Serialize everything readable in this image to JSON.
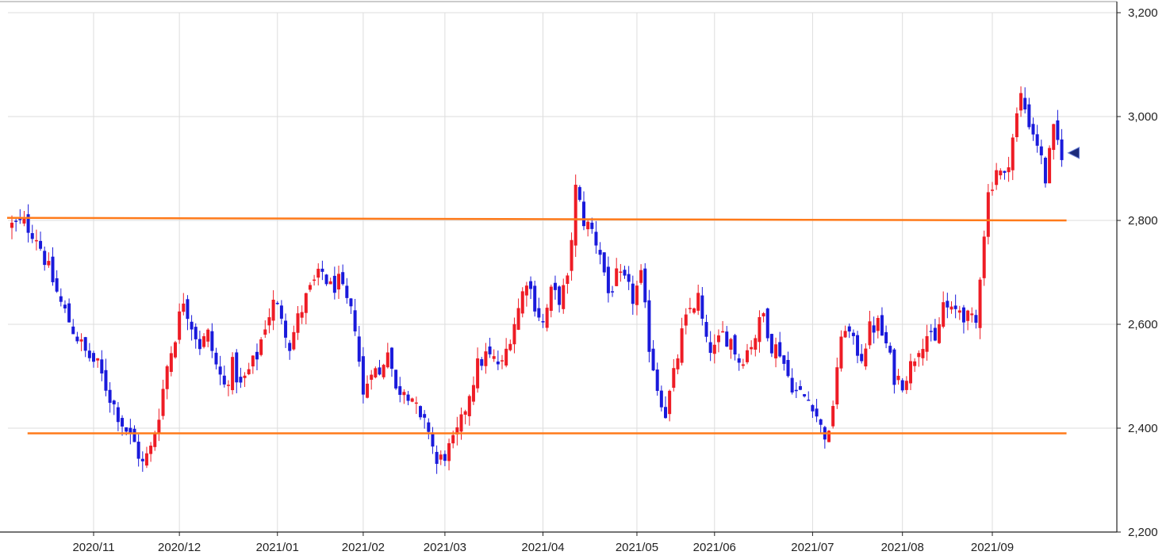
{
  "colors": {
    "up": "#ee1c25",
    "down": "#1a1adb",
    "grid": "#dddddd",
    "axis": "#222222",
    "support_resistance": "#ff7a1a",
    "marker": "#1b2a7a"
  },
  "chart_data": {
    "type": "candlestick",
    "title": "",
    "xlabel": "",
    "ylabel": "",
    "ylim": [
      2200,
      3200
    ],
    "y_ticks": [
      2200,
      2400,
      2600,
      2800,
      3000,
      3200
    ],
    "y_tick_labels": [
      "2,200",
      "2,400",
      "2,600",
      "2,800",
      "3,000",
      "3,200"
    ],
    "x_ticks": [
      {
        "label": "2020/11",
        "bar": 20
      },
      {
        "label": "2020/12",
        "bar": 41
      },
      {
        "label": "2021/01",
        "bar": 65
      },
      {
        "label": "2021/02",
        "bar": 86
      },
      {
        "label": "2021/03",
        "bar": 106
      },
      {
        "label": "2021/04",
        "bar": 130
      },
      {
        "label": "2021/05",
        "bar": 153
      },
      {
        "label": "2021/06",
        "bar": 172
      },
      {
        "label": "2021/07",
        "bar": 196
      },
      {
        "label": "2021/08",
        "bar": 218
      },
      {
        "label": "2021/09",
        "bar": 240
      }
    ],
    "bar_count": 258,
    "horizontal_lines": [
      {
        "from_bar": 0,
        "to_bar": 257,
        "y_start": 2805,
        "y_end": 2800
      },
      {
        "from_bar": 5,
        "to_bar": 257,
        "y_start": 2390,
        "y_end": 2390
      }
    ],
    "last_price_marker": 2930,
    "anchors": [
      [
        0,
        2790
      ],
      [
        3,
        2795
      ],
      [
        6,
        2770
      ],
      [
        9,
        2705
      ],
      [
        12,
        2640
      ],
      [
        15,
        2590
      ],
      [
        18,
        2545
      ],
      [
        21,
        2520
      ],
      [
        24,
        2460
      ],
      [
        27,
        2410
      ],
      [
        30,
        2370
      ],
      [
        32,
        2330
      ],
      [
        34,
        2360
      ],
      [
        36,
        2430
      ],
      [
        38,
        2520
      ],
      [
        40,
        2580
      ],
      [
        42,
        2650
      ],
      [
        44,
        2600
      ],
      [
        46,
        2560
      ],
      [
        48,
        2580
      ],
      [
        50,
        2520
      ],
      [
        52,
        2480
      ],
      [
        54,
        2520
      ],
      [
        56,
        2480
      ],
      [
        58,
        2510
      ],
      [
        60,
        2540
      ],
      [
        62,
        2600
      ],
      [
        64,
        2640
      ],
      [
        66,
        2620
      ],
      [
        68,
        2560
      ],
      [
        70,
        2610
      ],
      [
        72,
        2650
      ],
      [
        74,
        2680
      ],
      [
        76,
        2700
      ],
      [
        78,
        2670
      ],
      [
        80,
        2680
      ],
      [
        82,
        2640
      ],
      [
        84,
        2600
      ],
      [
        86,
        2460
      ],
      [
        88,
        2520
      ],
      [
        90,
        2500
      ],
      [
        92,
        2560
      ],
      [
        94,
        2470
      ],
      [
        96,
        2480
      ],
      [
        98,
        2460
      ],
      [
        100,
        2410
      ],
      [
        102,
        2400
      ],
      [
        104,
        2330
      ],
      [
        106,
        2350
      ],
      [
        108,
        2370
      ],
      [
        110,
        2410
      ],
      [
        112,
        2470
      ],
      [
        114,
        2520
      ],
      [
        116,
        2540
      ],
      [
        118,
        2530
      ],
      [
        120,
        2520
      ],
      [
        122,
        2580
      ],
      [
        124,
        2630
      ],
      [
        126,
        2690
      ],
      [
        128,
        2640
      ],
      [
        130,
        2600
      ],
      [
        132,
        2660
      ],
      [
        134,
        2650
      ],
      [
        136,
        2680
      ],
      [
        138,
        2860
      ],
      [
        140,
        2800
      ],
      [
        142,
        2780
      ],
      [
        144,
        2740
      ],
      [
        146,
        2660
      ],
      [
        148,
        2690
      ],
      [
        150,
        2680
      ],
      [
        152,
        2650
      ],
      [
        154,
        2690
      ],
      [
        156,
        2560
      ],
      [
        158,
        2480
      ],
      [
        160,
        2430
      ],
      [
        162,
        2500
      ],
      [
        164,
        2580
      ],
      [
        166,
        2630
      ],
      [
        168,
        2650
      ],
      [
        170,
        2560
      ],
      [
        172,
        2550
      ],
      [
        174,
        2580
      ],
      [
        176,
        2570
      ],
      [
        178,
        2530
      ],
      [
        180,
        2550
      ],
      [
        182,
        2580
      ],
      [
        184,
        2620
      ],
      [
        186,
        2560
      ],
      [
        188,
        2550
      ],
      [
        190,
        2500
      ],
      [
        192,
        2470
      ],
      [
        194,
        2460
      ],
      [
        196,
        2450
      ],
      [
        198,
        2400
      ],
      [
        200,
        2380
      ],
      [
        202,
        2520
      ],
      [
        204,
        2600
      ],
      [
        206,
        2560
      ],
      [
        208,
        2540
      ],
      [
        210,
        2590
      ],
      [
        212,
        2600
      ],
      [
        214,
        2560
      ],
      [
        216,
        2500
      ],
      [
        218,
        2490
      ],
      [
        220,
        2520
      ],
      [
        222,
        2560
      ],
      [
        224,
        2580
      ],
      [
        226,
        2560
      ],
      [
        228,
        2640
      ],
      [
        230,
        2620
      ],
      [
        232,
        2630
      ],
      [
        234,
        2610
      ],
      [
        236,
        2600
      ],
      [
        237,
        2700
      ],
      [
        238,
        2780
      ],
      [
        239,
        2850
      ],
      [
        241,
        2900
      ],
      [
        243,
        2880
      ],
      [
        245,
        2960
      ],
      [
        247,
        3040
      ],
      [
        249,
        2990
      ],
      [
        251,
        2950
      ],
      [
        253,
        2880
      ],
      [
        255,
        2970
      ],
      [
        257,
        2930
      ]
    ]
  },
  "axis_labels": {
    "x": [
      "2020/11",
      "2020/12",
      "2021/01",
      "2021/02",
      "2021/03",
      "2021/04",
      "2021/05",
      "2021/06",
      "2021/07",
      "2021/08",
      "2021/09"
    ],
    "y": [
      "2,200",
      "2,400",
      "2,600",
      "2,800",
      "3,000",
      "3,200"
    ]
  }
}
